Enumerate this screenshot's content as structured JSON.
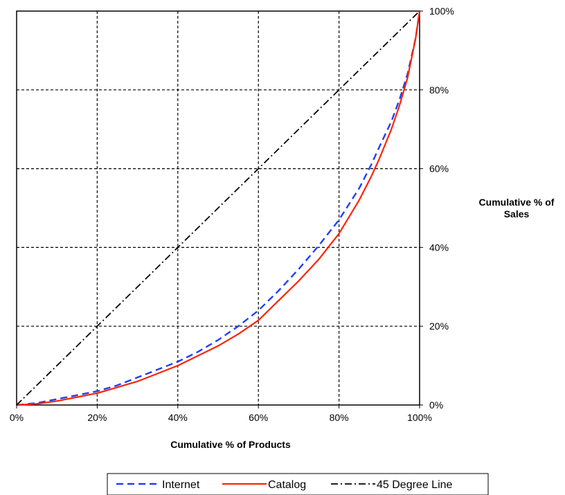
{
  "chart_data": {
    "type": "line",
    "title": "",
    "xlabel": "Cumulative % of Products",
    "ylabel": "Cumulative % of Sales",
    "xlim": [
      0,
      100
    ],
    "ylim": [
      0,
      100
    ],
    "x_ticks": [
      "0%",
      "20%",
      "40%",
      "60%",
      "80%",
      "100%"
    ],
    "y_ticks": [
      "0%",
      "20%",
      "40%",
      "60%",
      "80%",
      "100%"
    ],
    "grid": true,
    "legend_position": "bottom",
    "series": [
      {
        "name": "Internet",
        "color": "#1f3fff",
        "style": "dashed",
        "points": [
          [
            0,
            0
          ],
          [
            5,
            0.5
          ],
          [
            10,
            1.5
          ],
          [
            15,
            2.5
          ],
          [
            20,
            3.5
          ],
          [
            25,
            5
          ],
          [
            30,
            7
          ],
          [
            35,
            9
          ],
          [
            40,
            11
          ],
          [
            45,
            13.5
          ],
          [
            50,
            16.5
          ],
          [
            55,
            20
          ],
          [
            60,
            24
          ],
          [
            65,
            29
          ],
          [
            70,
            34.5
          ],
          [
            75,
            40.5
          ],
          [
            80,
            47
          ],
          [
            85,
            55
          ],
          [
            88,
            61
          ],
          [
            90,
            65.5
          ],
          [
            93,
            72
          ],
          [
            95,
            77.5
          ],
          [
            97,
            84
          ],
          [
            99,
            93
          ],
          [
            100,
            100
          ]
        ]
      },
      {
        "name": "Catalog",
        "color": "#ff2200",
        "style": "solid",
        "points": [
          [
            0,
            0
          ],
          [
            5,
            0.3
          ],
          [
            10,
            1
          ],
          [
            15,
            2
          ],
          [
            20,
            3
          ],
          [
            25,
            4.5
          ],
          [
            30,
            6
          ],
          [
            35,
            8
          ],
          [
            40,
            10
          ],
          [
            45,
            12.5
          ],
          [
            50,
            15
          ],
          [
            55,
            18
          ],
          [
            60,
            21.5
          ],
          [
            65,
            26.5
          ],
          [
            70,
            31.5
          ],
          [
            75,
            37
          ],
          [
            80,
            43.5
          ],
          [
            85,
            52
          ],
          [
            88,
            58
          ],
          [
            90,
            62.5
          ],
          [
            93,
            70
          ],
          [
            95,
            76
          ],
          [
            97,
            83
          ],
          [
            99,
            93
          ],
          [
            100,
            100
          ]
        ]
      },
      {
        "name": "45 Degree Line",
        "color": "#000000",
        "style": "dashdot",
        "points": [
          [
            0,
            0
          ],
          [
            100,
            100
          ]
        ]
      }
    ]
  }
}
